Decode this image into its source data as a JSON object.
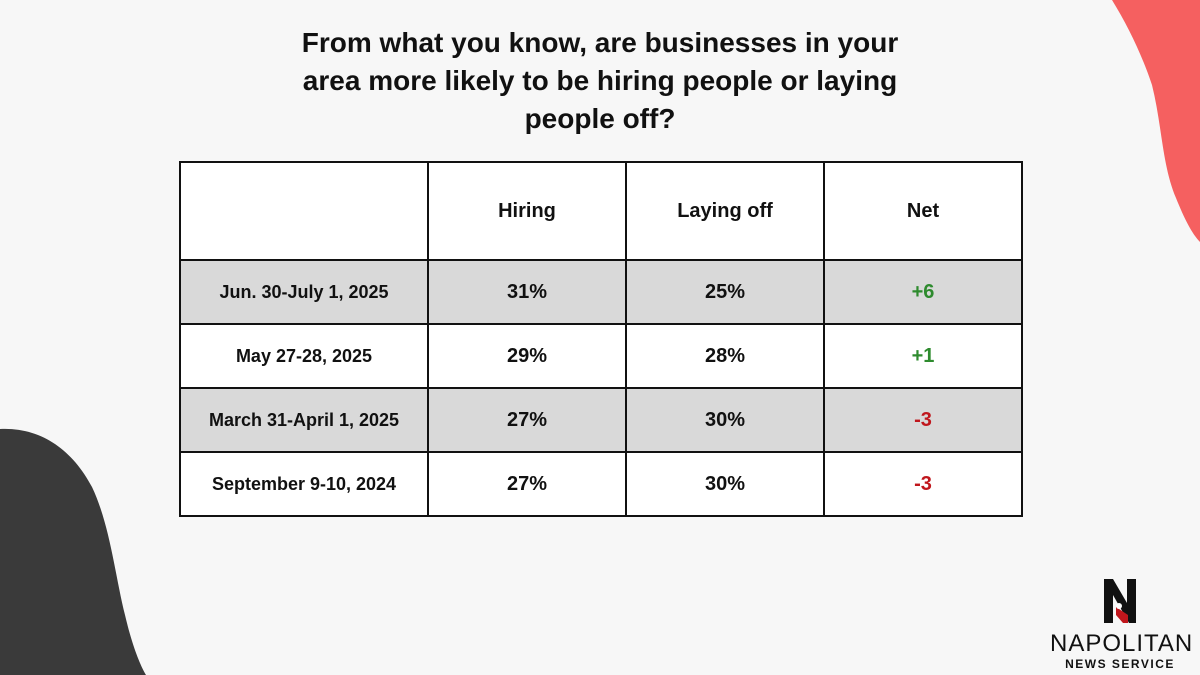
{
  "chart_data": {
    "type": "table",
    "title": "From what you know, are businesses in your area more likely to be hiring people or laying people off?",
    "columns": [
      "",
      "Hiring",
      "Laying off",
      "Net"
    ],
    "rows": [
      {
        "date": "Jun. 30-July 1, 2025",
        "hiring": "31%",
        "laying_off": "25%",
        "net": "+6",
        "net_value": 6
      },
      {
        "date": "May 27-28, 2025",
        "hiring": "29%",
        "laying_off": "28%",
        "net": "+1",
        "net_value": 1
      },
      {
        "date": "March 31-April 1, 2025",
        "hiring": "27%",
        "laying_off": "30%",
        "net": "-3",
        "net_value": -3
      },
      {
        "date": "September 9-10, 2024",
        "hiring": "27%",
        "laying_off": "30%",
        "net": "-3",
        "net_value": -3
      }
    ]
  },
  "colors": {
    "positive": "#2e8b2e",
    "negative": "#c0161c",
    "shaded_row": "#d9d9d9",
    "accent_blob": "#f56060",
    "dark_blob": "#3a3a3a"
  },
  "logo": {
    "name": "NAPOLITAN",
    "subtitle": "NEWS SERVICE"
  }
}
